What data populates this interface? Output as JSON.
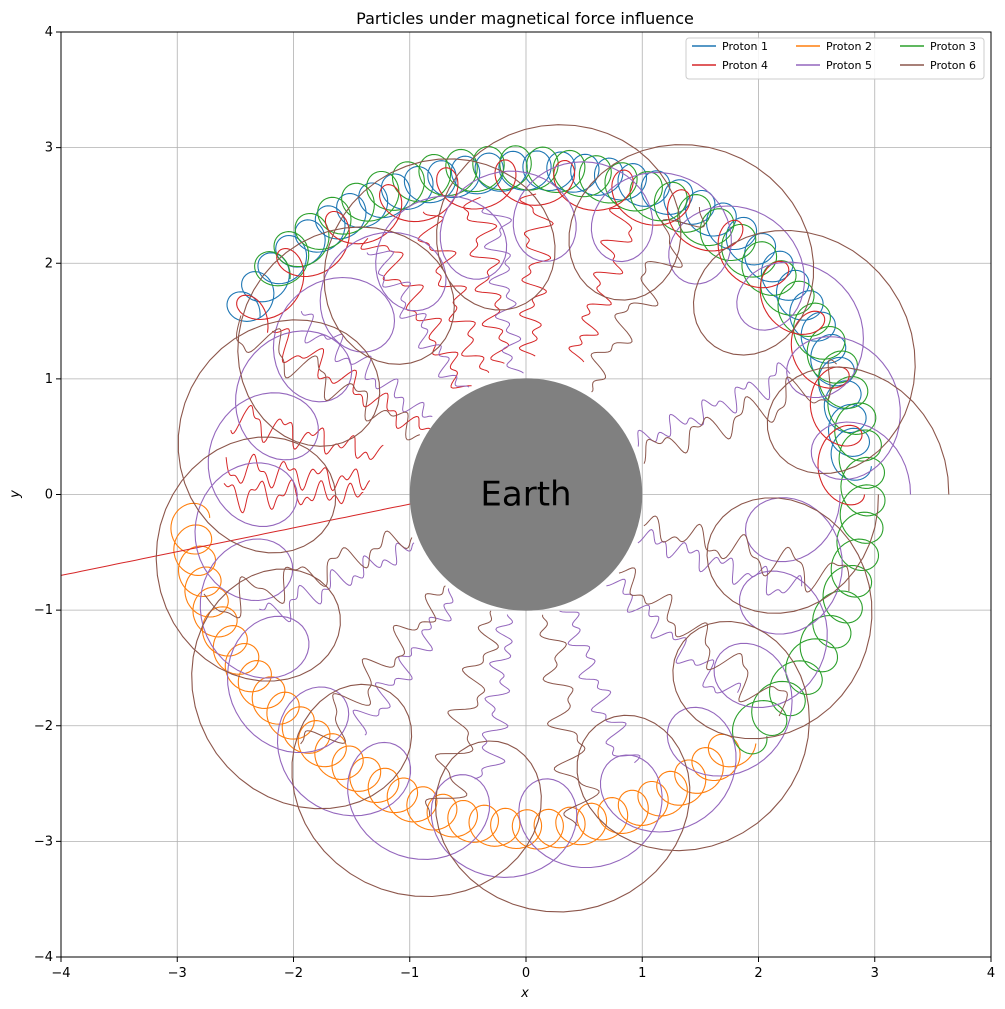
{
  "chart_data": {
    "type": "line",
    "title": "Particles under magnetical force influence",
    "xlabel": "x",
    "ylabel": "y",
    "xlim": [
      -4,
      4
    ],
    "ylim": [
      -4,
      4
    ],
    "xticks": [
      -4,
      -3,
      -2,
      -1,
      0,
      1,
      2,
      3,
      4
    ],
    "yticks": [
      -4,
      -3,
      -2,
      -1,
      0,
      1,
      2,
      3,
      4
    ],
    "x_tick_labels": [
      "−4",
      "−3",
      "−2",
      "−1",
      "0",
      "1",
      "2",
      "3",
      "4"
    ],
    "y_tick_labels": [
      "−4",
      "−3",
      "−2",
      "−1",
      "0",
      "1",
      "2",
      "3",
      "4"
    ],
    "grid": true,
    "legend_position": "top-right",
    "earth": {
      "label": "Earth",
      "center": [
        0,
        0
      ],
      "radius": 1,
      "color": "#808080"
    },
    "series": [
      {
        "name": "Proton 1",
        "color": "#1f77b4",
        "description_points": "gyrating drift from upper-left around top to right",
        "guiding_path": {
          "r": 2.85,
          "theta_start_deg": 148,
          "theta_end_deg": 5,
          "loops": 34,
          "gyro_radius": 0.17
        }
      },
      {
        "name": "Proton 2",
        "color": "#ff7f0e",
        "guiding_path": {
          "r": 2.85,
          "theta_start_deg": 184,
          "theta_end_deg": 310,
          "loops": 34,
          "gyro_radius": 0.17
        }
      },
      {
        "name": "Proton 3",
        "color": "#2ca02c",
        "guiding_path": {
          "r": 2.85,
          "theta_start_deg": 140,
          "theta_end_deg": -48,
          "loops": 40,
          "gyro_radius": 0.19
        }
      },
      {
        "name": "Proton 4",
        "color": "#d62728",
        "guiding_path": {
          "r": 2.75,
          "theta_start_deg": 150,
          "theta_end_deg": 0,
          "loops": 14,
          "gyro_radius": 0.2
        }
      },
      {
        "name": "Proton 5",
        "color": "#9467bd",
        "guiding_path": {
          "r": 2.55,
          "theta_start_deg": 0,
          "theta_end_deg": 360,
          "loops": 24,
          "gyro_radius": 0.42
        }
      },
      {
        "name": "Proton 6",
        "color": "#8c564b",
        "guiding_path": {
          "r": 2.55,
          "theta_start_deg": 0,
          "theta_end_deg": 360,
          "loops": 14,
          "gyro_radius": 0.75
        }
      }
    ]
  }
}
